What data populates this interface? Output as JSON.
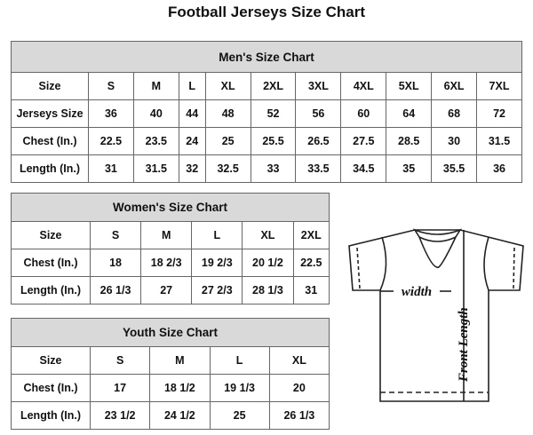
{
  "title": "Football Jerseys Size Chart",
  "men": {
    "caption": "Men's Size Chart",
    "rows": [
      [
        "Size",
        "S",
        "M",
        "L",
        "XL",
        "2XL",
        "3XL",
        "4XL",
        "5XL",
        "6XL",
        "7XL"
      ],
      [
        "Jerseys Size",
        "36",
        "40",
        "44",
        "48",
        "52",
        "56",
        "60",
        "64",
        "68",
        "72"
      ],
      [
        "Chest (In.)",
        "22.5",
        "23.5",
        "24",
        "25",
        "25.5",
        "26.5",
        "27.5",
        "28.5",
        "30",
        "31.5"
      ],
      [
        "Length (In.)",
        "31",
        "31.5",
        "32",
        "32.5",
        "33",
        "33.5",
        "34.5",
        "35",
        "35.5",
        "36"
      ]
    ]
  },
  "women": {
    "caption": "Women's Size Chart",
    "rows": [
      [
        "Size",
        "S",
        "M",
        "L",
        "XL",
        "2XL"
      ],
      [
        "Chest (In.)",
        "18",
        "18 2/3",
        "19 2/3",
        "20 1/2",
        "22.5"
      ],
      [
        "Length (In.)",
        "26 1/3",
        "27",
        "27 2/3",
        "28 1/3",
        "31"
      ]
    ]
  },
  "youth": {
    "caption": "Youth Size Chart",
    "rows": [
      [
        "Size",
        "S",
        "M",
        "L",
        "XL"
      ],
      [
        "Chest (In.)",
        "17",
        "18 1/2",
        "19 1/3",
        "20"
      ],
      [
        "Length (In.)",
        "23 1/2",
        "24 1/2",
        "25",
        "26 1/3"
      ]
    ]
  },
  "diagram": {
    "width_label": "width",
    "length_label": "Front Length"
  }
}
